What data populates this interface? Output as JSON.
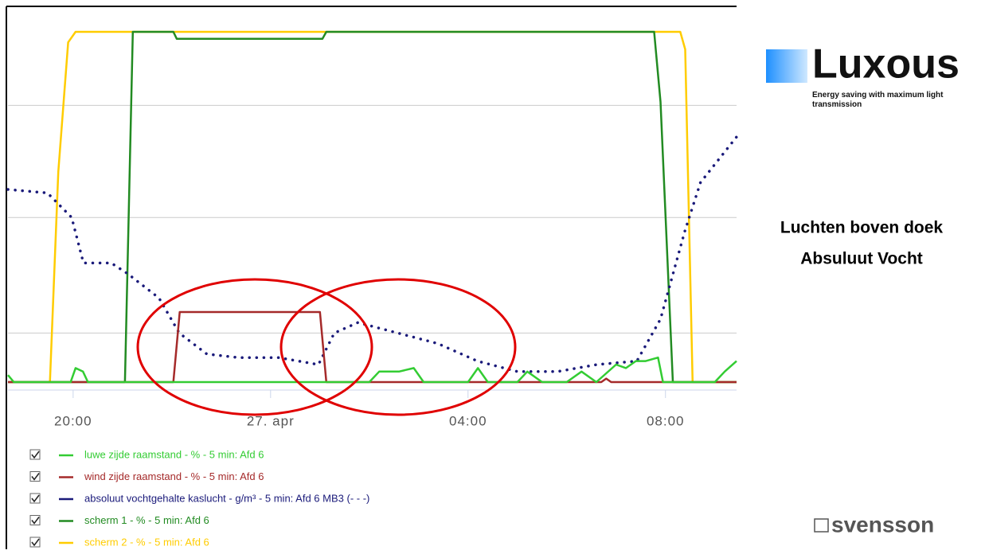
{
  "chart_data": {
    "type": "line",
    "xlim": [
      -5.32,
      9.44
    ],
    "xticks": [
      {
        "value": -4,
        "label": "20:00"
      },
      {
        "value": 0,
        "label": "27. apr"
      },
      {
        "value": 4,
        "label": "04:00"
      },
      {
        "value": 8,
        "label": "08:00"
      }
    ],
    "ylim": [
      0,
      100
    ],
    "yticks": [
      14,
      47,
      79
    ],
    "grid": true,
    "series": [
      {
        "name": "luwe zijde raamstand - % - 5 min: Afd 6",
        "color": "#33cc33",
        "dash": false,
        "x": [
          -5.32,
          -5.2,
          -5.1,
          -4.05,
          -3.95,
          -3.8,
          -3.7,
          2.0,
          2.2,
          2.6,
          2.9,
          3.1,
          4.0,
          4.2,
          4.4,
          5.0,
          5.2,
          5.5,
          6.0,
          6.3,
          6.6,
          7.0,
          7.2,
          7.4,
          7.6,
          7.85,
          7.95,
          9.0,
          9.2,
          9.44
        ],
        "values": [
          2,
          0,
          0,
          0,
          4,
          3,
          0,
          0,
          3,
          3,
          4,
          0,
          0,
          4,
          0,
          0,
          3,
          0,
          0,
          3,
          0,
          5,
          4,
          6,
          6,
          7,
          0,
          0,
          3,
          6
        ]
      },
      {
        "name": "wind zijde raamstand - % - 5 min: Afd 6",
        "color": "#a52a2a",
        "dash": false,
        "x": [
          -5.32,
          -1.97,
          -1.84,
          1.0,
          1.13,
          6.7,
          6.8,
          6.9,
          9.44
        ],
        "values": [
          0,
          0,
          20,
          20,
          0,
          0,
          1,
          0,
          0
        ]
      },
      {
        "name": "absoluut vochtgehalte kaslucht - g/m³ - 5 min: Afd 6 MB3 (- - -)",
        "color": "#1a1a7a",
        "dash": true,
        "x": [
          -5.32,
          -4.52,
          -4.03,
          -3.79,
          -3.23,
          -2.9,
          -2.26,
          -1.85,
          -1.29,
          -0.65,
          0.16,
          0.97,
          1.29,
          1.77,
          2.58,
          3.39,
          4.19,
          5.0,
          5.81,
          6.61,
          7.42,
          7.9,
          8.39,
          8.71,
          9.44
        ],
        "values": [
          55,
          54,
          47,
          34,
          34,
          31,
          24,
          14,
          8,
          7,
          7,
          5,
          14,
          17,
          14,
          11,
          6,
          3,
          3,
          5,
          6,
          18,
          43,
          57,
          70
        ]
      },
      {
        "name": "scherm 1 - % - 5 min: Afd 6",
        "color": "#228b22",
        "dash": false,
        "x": [
          -5.32,
          -2.95,
          -2.79,
          -1.97,
          -1.9,
          1.05,
          1.13,
          7.77,
          7.9,
          8.15,
          9.44
        ],
        "values": [
          0,
          0,
          100,
          100,
          98,
          98,
          100,
          100,
          80,
          0,
          0
        ]
      },
      {
        "name": "scherm 2 - % - 5 min: Afd 6",
        "color": "#ffcc00",
        "dash": false,
        "x": [
          -5.32,
          -4.47,
          -4.3,
          -4.1,
          -3.95,
          8.3,
          8.4,
          8.55,
          9.44
        ],
        "values": [
          0,
          0,
          60,
          97,
          100,
          100,
          95,
          0,
          0
        ]
      }
    ]
  },
  "slide": {
    "logo": "Luxous",
    "tagline": "Energy saving with maximum light transmission",
    "heading": [
      "Luchten boven doek",
      "Absuluut Vocht"
    ],
    "brand": "svensson"
  }
}
